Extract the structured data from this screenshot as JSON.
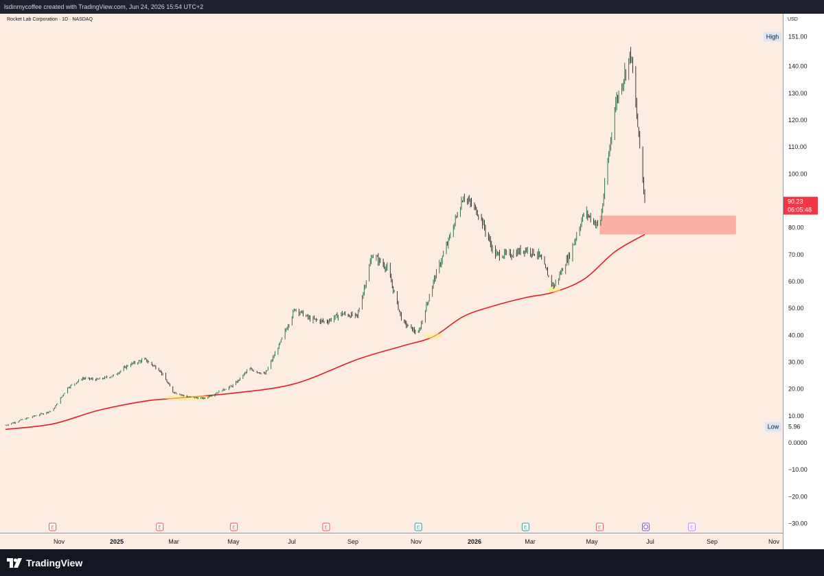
{
  "header": {
    "attribution": "lsdinmycoffee created with TradingView.com, Jun 24, 2026 15:54 UTC+2"
  },
  "symbol": {
    "title": "Rocket Lab Corporation · 1D · NASDAQ"
  },
  "currency": "USD",
  "brand": "TradingView",
  "colors": {
    "background": "#fcece1",
    "up": "#1b6b37",
    "down": "#222222",
    "moving_average": "#e0202a",
    "zone": "#f8a8a0",
    "price_label": "#f23645",
    "high_low_label": "#dbe6f8"
  },
  "chart_data": {
    "type": "line",
    "title": "Rocket Lab Corporation · 1D · NASDAQ",
    "ylabel": "USD",
    "ylim": [
      -32,
      162
    ],
    "grid": false,
    "x_ticks": [
      {
        "label": "Nov",
        "bold": false
      },
      {
        "label": "2025",
        "bold": true
      },
      {
        "label": "Mar",
        "bold": false
      },
      {
        "label": "May",
        "bold": false
      },
      {
        "label": "Jul",
        "bold": false
      },
      {
        "label": "Sep",
        "bold": false
      },
      {
        "label": "Nov",
        "bold": false
      },
      {
        "label": "2026",
        "bold": true
      },
      {
        "label": "Mar",
        "bold": false
      },
      {
        "label": "May",
        "bold": false
      },
      {
        "label": "Jul",
        "bold": false
      },
      {
        "label": "Sep",
        "bold": false
      },
      {
        "label": "Nov",
        "bold": false
      }
    ],
    "y_ticks": [
      {
        "value": 140,
        "label": "140.00"
      },
      {
        "value": 130,
        "label": "130.00"
      },
      {
        "value": 120,
        "label": "120.00"
      },
      {
        "value": 110,
        "label": "110.00"
      },
      {
        "value": 100,
        "label": "100.00"
      },
      {
        "value": 80,
        "label": "80.00"
      },
      {
        "value": 70,
        "label": "70.00"
      },
      {
        "value": 60,
        "label": "60.00"
      },
      {
        "value": 50,
        "label": "50.00"
      },
      {
        "value": 40,
        "label": "40.00"
      },
      {
        "value": 30,
        "label": "30.00"
      },
      {
        "value": 20,
        "label": "20.00"
      },
      {
        "value": 10,
        "label": "10.00"
      },
      {
        "value": 0,
        "label": "0.0000"
      },
      {
        "value": -10,
        "label": "−10.00"
      },
      {
        "value": -20,
        "label": "−20.00"
      },
      {
        "value": -30,
        "label": "−30.00"
      }
    ],
    "high": {
      "label": "High",
      "value": 151.0,
      "value_label": "151.00"
    },
    "low": {
      "label": "Low",
      "value": 5.96,
      "value_label": "5.96"
    },
    "last_price": {
      "value": 90.23,
      "value_label": "90.23",
      "countdown": "06:05:48"
    },
    "zone": {
      "from": "2026-05-10",
      "to": "2026-09-23",
      "low": 77.5,
      "high": 84.5
    },
    "series": [
      {
        "type": "line",
        "role": "price",
        "x": [
          "2024-09-24",
          "2024-10-10",
          "2024-10-25",
          "2024-11-10",
          "2024-11-25",
          "2024-12-10",
          "2024-12-25",
          "2025-01-10",
          "2025-01-25",
          "2025-02-10",
          "2025-02-25",
          "2025-03-10",
          "2025-03-25",
          "2025-04-10",
          "2025-04-25",
          "2025-05-10",
          "2025-05-25",
          "2025-06-10",
          "2025-06-25",
          "2025-07-10",
          "2025-07-25",
          "2025-08-10",
          "2025-08-25",
          "2025-09-10",
          "2025-09-25",
          "2025-10-10",
          "2025-10-25",
          "2025-11-10",
          "2025-11-25",
          "2025-12-10",
          "2025-12-25",
          "2026-01-10",
          "2026-01-25",
          "2026-02-10",
          "2026-02-25",
          "2026-03-10",
          "2026-03-25",
          "2026-04-10",
          "2026-04-25",
          "2026-05-10",
          "2026-05-25",
          "2026-06-10",
          "2026-06-24"
        ],
        "values": [
          6.5,
          8.5,
          10.2,
          12.0,
          20.5,
          24.0,
          23.5,
          25.0,
          29.0,
          31.0,
          27.0,
          19.0,
          17.0,
          16.5,
          19.0,
          21.5,
          27.5,
          25.5,
          37.0,
          50.0,
          46.0,
          45.0,
          48.0,
          47.0,
          70.0,
          65.0,
          45.0,
          40.5,
          60.0,
          75.0,
          92.0,
          85.0,
          70.0,
          70.0,
          72.0,
          70.0,
          58.0,
          70.0,
          86.0,
          80.0,
          125.0,
          145.0,
          90.23
        ]
      },
      {
        "type": "line",
        "role": "moving-average",
        "x": [
          "2024-09-24",
          "2024-11-10",
          "2024-12-25",
          "2025-02-10",
          "2025-03-10",
          "2025-05-10",
          "2025-07-10",
          "2025-09-10",
          "2025-10-25",
          "2025-11-25",
          "2025-12-25",
          "2026-01-25",
          "2026-02-25",
          "2026-03-25",
          "2026-04-25",
          "2026-05-25",
          "2026-06-24"
        ],
        "values": [
          5.0,
          7.0,
          12.0,
          15.5,
          16.5,
          18.5,
          22.0,
          31.0,
          36.0,
          39.5,
          47.0,
          51.0,
          54.0,
          56.0,
          61.0,
          71.0,
          77.5
        ]
      }
    ],
    "earnings": [
      {
        "date": "2024-11-10",
        "label": "E",
        "kind": "earnings"
      },
      {
        "date": "2025-02-25",
        "label": "E",
        "kind": "earnings"
      },
      {
        "date": "2025-05-10",
        "label": "E",
        "kind": "earnings"
      },
      {
        "date": "2025-08-10",
        "label": "E",
        "kind": "earnings"
      },
      {
        "date": "2025-11-10",
        "label": "E",
        "kind": "dividend"
      },
      {
        "date": "2026-02-25",
        "label": "E",
        "kind": "dividend"
      },
      {
        "date": "2026-05-10",
        "label": "E",
        "kind": "earnings"
      },
      {
        "date": "2026-06-25",
        "label": "",
        "kind": "split"
      },
      {
        "date": "2026-08-10",
        "label": "E",
        "kind": "future"
      }
    ]
  }
}
